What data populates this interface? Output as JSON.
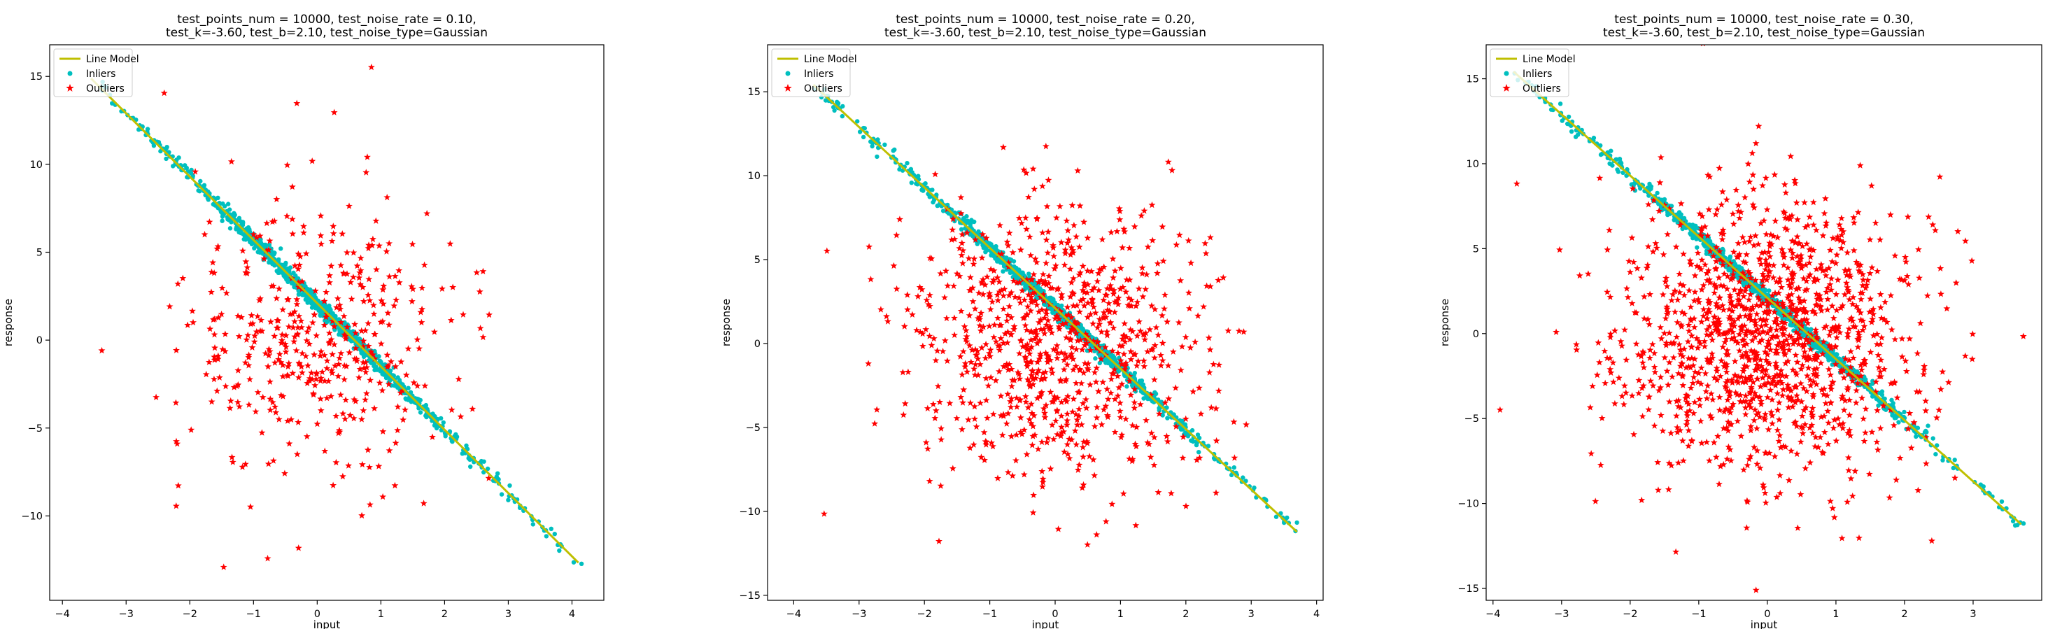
{
  "chart_data": [
    {
      "type": "scatter",
      "title_lines": [
        "test_points_num = 10000, test_noise_rate = 0.10,",
        "test_k=-3.60, test_b=2.10, test_noise_type=Gaussian"
      ],
      "xlabel": "input",
      "ylabel": "response",
      "xlim": [
        -4.2,
        4.5
      ],
      "ylim": [
        -14.8,
        16.8
      ],
      "xticks": [
        -4,
        -3,
        -2,
        -1,
        0,
        1,
        2,
        3,
        4
      ],
      "yticks": [
        -10,
        -5,
        0,
        5,
        10,
        15
      ],
      "tick_labels_x": [
        "−4",
        "−3",
        "−2",
        "−1",
        "0",
        "1",
        "2",
        "3",
        "4"
      ],
      "tick_labels_y": [
        "−10",
        "−5",
        "0",
        "5",
        "10",
        "15"
      ],
      "model": {
        "k": -3.6,
        "b": 2.1,
        "noise_rate": 0.1,
        "noise_type": "Gaussian",
        "points": 10000
      },
      "line_x_range": [
        -3.55,
        4.1
      ],
      "inlier_x_range": [
        -3.55,
        4.15
      ],
      "outliers_shown": 1000,
      "outlier_std": [
        1.1,
        4.1
      ],
      "grid": false,
      "legend": {
        "position": "upper left",
        "entries": [
          "Line Model",
          "Inliers",
          "Outliers"
        ]
      },
      "colors": {
        "line": "#bfbf00",
        "inliers": "#00bfbf",
        "outliers": "#ff0000"
      }
    },
    {
      "type": "scatter",
      "title_lines": [
        "test_points_num = 10000, test_noise_rate = 0.20,",
        "test_k=-3.60, test_b=2.10, test_noise_type=Gaussian"
      ],
      "xlabel": "input",
      "ylabel": "response",
      "xlim": [
        -4.4,
        4.1
      ],
      "ylim": [
        -15.3,
        17.8
      ],
      "xticks": [
        -4,
        -3,
        -2,
        -1,
        0,
        1,
        2,
        3,
        4
      ],
      "yticks": [
        -15,
        -10,
        -5,
        0,
        5,
        10,
        15
      ],
      "tick_labels_x": [
        "−4",
        "−3",
        "−2",
        "−1",
        "0",
        "1",
        "2",
        "3",
        "4"
      ],
      "tick_labels_y": [
        "−15",
        "−10",
        "−5",
        "0",
        "5",
        "10",
        "15"
      ],
      "model": {
        "k": -3.6,
        "b": 2.1,
        "noise_rate": 0.2,
        "noise_type": "Gaussian",
        "points": 10000
      },
      "line_x_range": [
        -3.7,
        3.7
      ],
      "inlier_x_range": [
        -3.7,
        3.75
      ],
      "outliers_shown": 2000,
      "outlier_std": [
        1.1,
        4.1
      ],
      "grid": false,
      "legend": {
        "position": "upper left",
        "entries": [
          "Line Model",
          "Inliers",
          "Outliers"
        ]
      },
      "colors": {
        "line": "#bfbf00",
        "inliers": "#00bfbf",
        "outliers": "#ff0000"
      }
    },
    {
      "type": "scatter",
      "title_lines": [
        "test_points_num = 10000, test_noise_rate = 0.30,",
        "test_k=-3.60, test_b=2.10, test_noise_type=Gaussian"
      ],
      "xlabel": "input",
      "ylabel": "response",
      "xlim": [
        -4.1,
        4.0
      ],
      "ylim": [
        -15.7,
        17.0
      ],
      "xticks": [
        -4,
        -3,
        -2,
        -1,
        0,
        1,
        2,
        3
      ],
      "yticks": [
        -15,
        -10,
        -5,
        0,
        5,
        10,
        15
      ],
      "tick_labels_x": [
        "−4",
        "−3",
        "−2",
        "−1",
        "0",
        "1",
        "2",
        "3"
      ],
      "tick_labels_y": [
        "−15",
        "−10",
        "−5",
        "0",
        "5",
        "10",
        "15"
      ],
      "model": {
        "k": -3.6,
        "b": 2.1,
        "noise_rate": 0.3,
        "noise_type": "Gaussian",
        "points": 10000
      },
      "line_x_range": [
        -3.7,
        3.7
      ],
      "inlier_x_range": [
        -3.7,
        3.75
      ],
      "outliers_shown": 3000,
      "outlier_std": [
        1.1,
        4.1
      ],
      "grid": false,
      "legend": {
        "position": "upper left",
        "entries": [
          "Line Model",
          "Inliers",
          "Outliers"
        ]
      },
      "colors": {
        "line": "#bfbf00",
        "inliers": "#00bfbf",
        "outliers": "#ff0000"
      }
    }
  ]
}
